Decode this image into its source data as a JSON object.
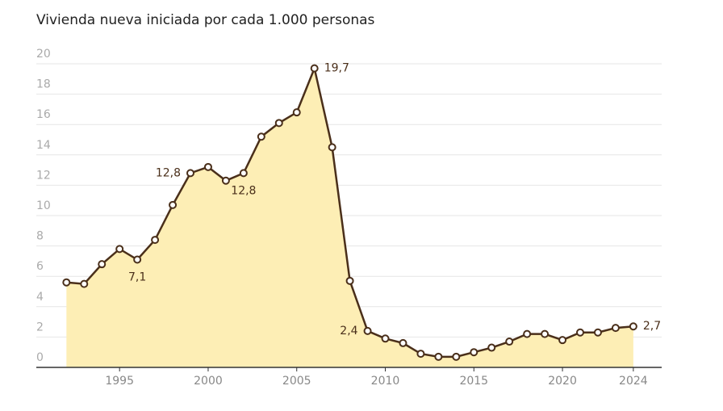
{
  "chart_data": {
    "type": "area",
    "title": "Vivienda nueva iniciada por cada 1.000 personas",
    "x": [
      1992,
      1993,
      1994,
      1995,
      1996,
      1997,
      1998,
      1999,
      2000,
      2001,
      2002,
      2003,
      2004,
      2005,
      2006,
      2007,
      2008,
      2009,
      2010,
      2011,
      2012,
      2013,
      2014,
      2015,
      2016,
      2017,
      2018,
      2019,
      2020,
      2021,
      2022,
      2023,
      2024
    ],
    "values": [
      5.6,
      5.5,
      6.8,
      7.8,
      7.1,
      8.4,
      10.7,
      12.8,
      13.2,
      12.3,
      12.8,
      15.2,
      16.1,
      16.8,
      19.7,
      14.5,
      5.7,
      2.4,
      1.9,
      1.6,
      0.9,
      0.7,
      0.7,
      1.0,
      1.3,
      1.7,
      2.2,
      2.2,
      1.8,
      2.3,
      2.3,
      2.6,
      2.7
    ],
    "value_labels": [
      null,
      null,
      null,
      null,
      "7,1",
      null,
      null,
      "12,8",
      null,
      null,
      "12,8",
      null,
      null,
      null,
      "19,7",
      null,
      null,
      "2,4",
      null,
      null,
      null,
      null,
      null,
      null,
      null,
      null,
      null,
      null,
      null,
      null,
      null,
      null,
      "2,7"
    ],
    "color": "#4a2f1a",
    "fill": "#fdeeb5",
    "xlim": [
      1990.3,
      2025.6
    ],
    "xticks": [
      1995,
      2000,
      2005,
      2010,
      2015,
      2020,
      2024
    ],
    "ylim": [
      0,
      20
    ],
    "yticks": [
      0,
      2,
      4,
      6,
      8,
      10,
      12,
      14,
      16,
      18,
      20
    ],
    "grid": true
  }
}
